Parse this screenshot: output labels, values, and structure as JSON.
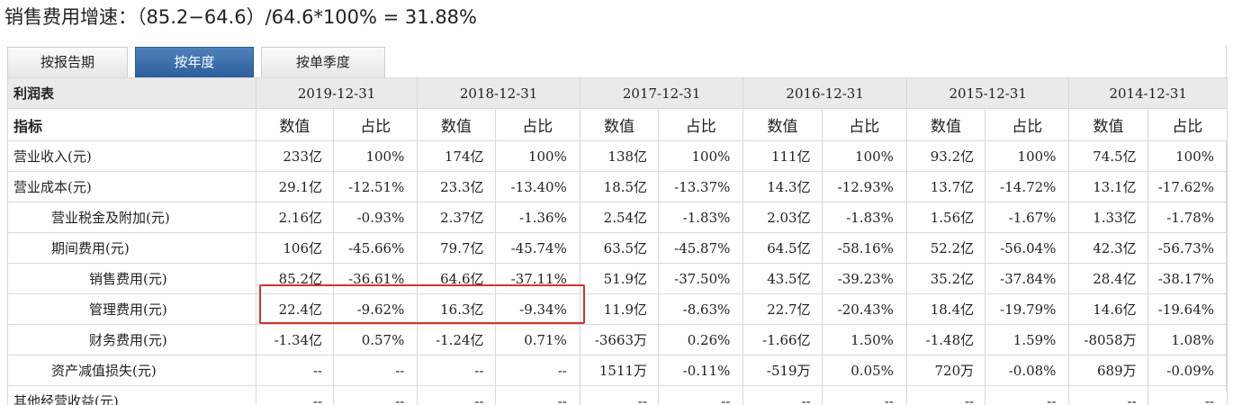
{
  "headline": "销售费用增速：（85.2−64.6）/64.6*100% = 31.88%",
  "tabs": [
    {
      "label": "按报告期",
      "active": false
    },
    {
      "label": "按年度",
      "active": true
    },
    {
      "label": "按单季度",
      "active": false
    }
  ],
  "table": {
    "corner_label": "利润表",
    "sub_label": "指标",
    "value_label": "数值",
    "ratio_label": "占比",
    "dates": [
      "2019-12-31",
      "2018-12-31",
      "2017-12-31",
      "2016-12-31",
      "2015-12-31",
      "2014-12-31"
    ],
    "rows": [
      {
        "name": "营业收入(元)",
        "indent": 0,
        "cells": [
          "233亿",
          "100%",
          "174亿",
          "100%",
          "138亿",
          "100%",
          "111亿",
          "100%",
          "93.2亿",
          "100%",
          "74.5亿",
          "100%"
        ]
      },
      {
        "name": "营业成本(元)",
        "indent": 0,
        "cells": [
          "29.1亿",
          "-12.51%",
          "23.3亿",
          "-13.40%",
          "18.5亿",
          "-13.37%",
          "14.3亿",
          "-12.93%",
          "13.7亿",
          "-14.72%",
          "13.1亿",
          "-17.62%"
        ]
      },
      {
        "name": "营业税金及附加(元)",
        "indent": 1,
        "cells": [
          "2.16亿",
          "-0.93%",
          "2.37亿",
          "-1.36%",
          "2.54亿",
          "-1.83%",
          "2.03亿",
          "-1.83%",
          "1.56亿",
          "-1.67%",
          "1.33亿",
          "-1.78%"
        ]
      },
      {
        "name": "期间费用(元)",
        "indent": 1,
        "cells": [
          "106亿",
          "-45.66%",
          "79.7亿",
          "-45.74%",
          "63.5亿",
          "-45.87%",
          "64.5亿",
          "-58.16%",
          "52.2亿",
          "-56.04%",
          "42.3亿",
          "-56.73%"
        ]
      },
      {
        "name": "销售费用(元)",
        "indent": 2,
        "cells": [
          "85.2亿",
          "-36.61%",
          "64.6亿",
          "-37.11%",
          "51.9亿",
          "-37.50%",
          "43.5亿",
          "-39.23%",
          "35.2亿",
          "-37.84%",
          "28.4亿",
          "-38.17%"
        ]
      },
      {
        "name": "管理费用(元)",
        "indent": 2,
        "cells": [
          "22.4亿",
          "-9.62%",
          "16.3亿",
          "-9.34%",
          "11.9亿",
          "-8.63%",
          "22.7亿",
          "-20.43%",
          "18.4亿",
          "-19.79%",
          "14.6亿",
          "-19.64%"
        ]
      },
      {
        "name": "财务费用(元)",
        "indent": 2,
        "cells": [
          "-1.34亿",
          "0.57%",
          "-1.24亿",
          "0.71%",
          "-3663万",
          "0.26%",
          "-1.66亿",
          "1.50%",
          "-1.48亿",
          "1.59%",
          "-8058万",
          "1.08%"
        ]
      },
      {
        "name": "资产减值损失(元)",
        "indent": 1,
        "cells": [
          "--",
          "--",
          "--",
          "--",
          "1511万",
          "-0.11%",
          "-519万",
          "0.05%",
          "720万",
          "-0.08%",
          "689万",
          "-0.09%"
        ]
      },
      {
        "name": "其他经营收益(元)",
        "indent": 0,
        "cells": [
          "--",
          "--",
          "--",
          "--",
          "--",
          "--",
          "--",
          "--",
          "--",
          "--",
          "--",
          "--"
        ]
      }
    ]
  }
}
